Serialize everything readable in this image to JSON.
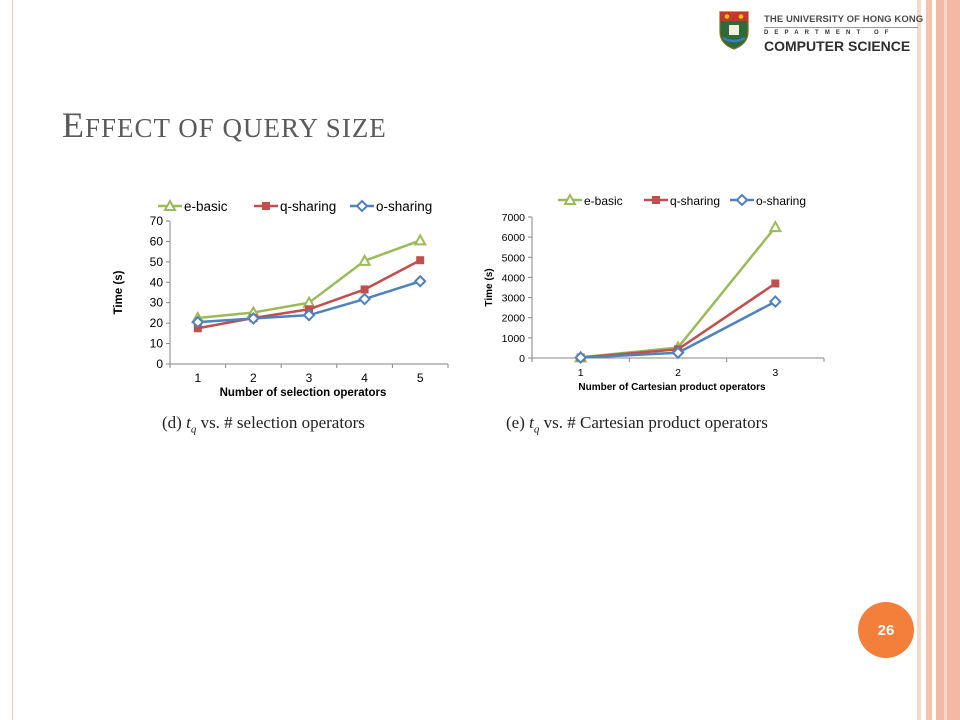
{
  "slide": {
    "title_first": "E",
    "title_rest": "FFECT OF QUERY SIZE",
    "page_number": "26"
  },
  "logo": {
    "university": "THE UNIVERSITY OF HONG KONG",
    "department_label": "DEPARTMENT OF",
    "department_name": "COMPUTER SCIENCE"
  },
  "captions": {
    "d_prefix": "(d)",
    "d_var": "t",
    "d_sub": "q",
    "d_text": "vs. # selection operators",
    "e_prefix": "(e)",
    "e_var": "t",
    "e_sub": "q",
    "e_text": "vs. # Cartesian product operators"
  },
  "colors": {
    "e_basic": "#9bbb59",
    "q_sharing": "#c0504d",
    "o_sharing": "#4f81bd",
    "accent": "#f47f3b"
  },
  "chart_data": [
    {
      "type": "line",
      "id": "d",
      "xlabel": "Number of selection operators",
      "ylabel": "Time (s)",
      "categories": [
        "1",
        "2",
        "3",
        "4",
        "5"
      ],
      "ylim": [
        0,
        70
      ],
      "yticks": [
        "0",
        "10",
        "20",
        "30",
        "40",
        "50",
        "60",
        "70"
      ],
      "legend_position": "top",
      "series": [
        {
          "name": "e-basic",
          "marker": "triangle",
          "values": [
            22.5,
            25.2,
            30,
            50.5,
            60.5
          ]
        },
        {
          "name": "q-sharing",
          "marker": "square",
          "values": [
            17.5,
            22.5,
            26.8,
            36.5,
            50.8
          ]
        },
        {
          "name": "o-sharing",
          "marker": "diamond",
          "values": [
            20.5,
            22.3,
            23.9,
            31.8,
            40.5
          ]
        }
      ]
    },
    {
      "type": "line",
      "id": "e",
      "xlabel": "Number of Cartesian product operators",
      "ylabel": "Time (s)",
      "categories": [
        "1",
        "2",
        "3"
      ],
      "ylim": [
        0,
        7000
      ],
      "yticks": [
        "0",
        "1000",
        "2000",
        "3000",
        "4000",
        "5000",
        "6000",
        "7000"
      ],
      "legend_position": "top",
      "series": [
        {
          "name": "e-basic",
          "marker": "triangle",
          "values": [
            30,
            520,
            6500
          ]
        },
        {
          "name": "q-sharing",
          "marker": "square",
          "values": [
            25,
            430,
            3700
          ]
        },
        {
          "name": "o-sharing",
          "marker": "diamond",
          "values": [
            20,
            260,
            2800
          ]
        }
      ]
    }
  ]
}
